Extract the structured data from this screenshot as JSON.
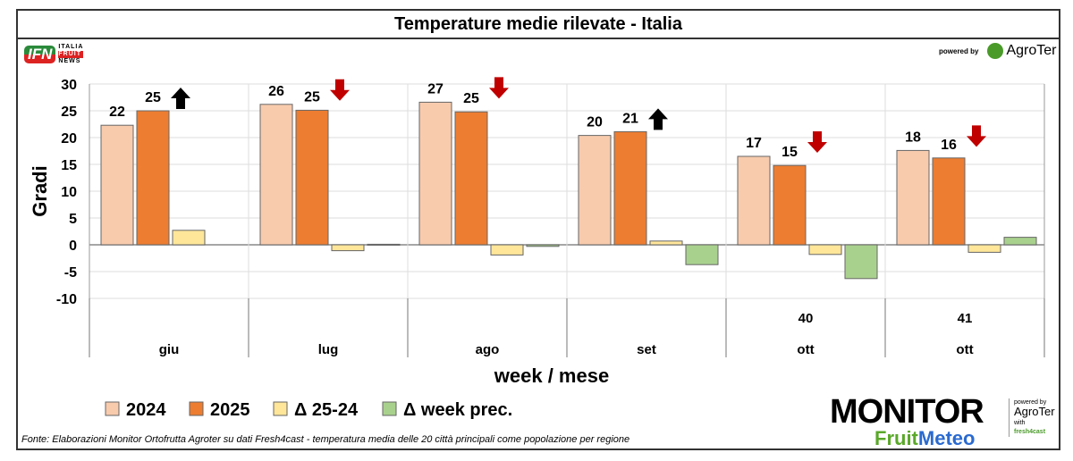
{
  "title": "Temperature medie rilevate - Italia",
  "footnote": "Fonte: Elaborazioni Monitor Ortofrutta Agroter su dati Fresh4cast - temperatura media delle 20 città principali come popolazione per regione",
  "logos": {
    "ifn": "IFN",
    "ifn_sub": [
      "ITALIA",
      "FRUIT",
      "NEWS"
    ],
    "powered_by": "powered by",
    "agroter": "AgroTer",
    "monitor": "MONITOR",
    "fruit": "Fruit",
    "meteo": "Meteo",
    "with": "with",
    "fresh4cast": "fresh4cast"
  },
  "chart_data": {
    "type": "bar",
    "ylabel": "Gradi",
    "xlabel": "week / mese",
    "ylim": [
      -10,
      30
    ],
    "yticks": [
      30,
      25,
      20,
      15,
      10,
      5,
      0,
      -5,
      -10
    ],
    "grid": true,
    "legend_position": "bottom",
    "categories": [
      {
        "week": "",
        "month": "giu"
      },
      {
        "week": "",
        "month": "lug"
      },
      {
        "week": "",
        "month": "ago"
      },
      {
        "week": "",
        "month": "set"
      },
      {
        "week": "40",
        "month": "ott"
      },
      {
        "week": "41",
        "month": "ott"
      }
    ],
    "series": [
      {
        "name": "2024",
        "color": "#f8cbad",
        "values": [
          22.3,
          26.2,
          26.6,
          20.4,
          16.5,
          17.6
        ],
        "labels": [
          "22",
          "26",
          "27",
          "20",
          "17",
          "18"
        ]
      },
      {
        "name": "2025",
        "color": "#ed7d31",
        "values": [
          25.0,
          25.1,
          24.8,
          21.1,
          14.8,
          16.2
        ],
        "labels": [
          "25",
          "25",
          "25",
          "21",
          "15",
          "16"
        ]
      },
      {
        "name": "Δ 25-24",
        "color": "#ffe699",
        "values": [
          2.7,
          -1.1,
          -1.9,
          0.7,
          -1.8,
          -1.4
        ]
      },
      {
        "name": "Δ week prec.",
        "color": "#a9d18e",
        "values": [
          null,
          0.1,
          -0.3,
          -3.7,
          -6.3,
          1.4
        ]
      }
    ],
    "trend_arrows": [
      "up",
      "down",
      "down",
      "up",
      "down",
      "down"
    ],
    "arrow_colors": {
      "up": "#000000",
      "down": "#c00000"
    }
  }
}
